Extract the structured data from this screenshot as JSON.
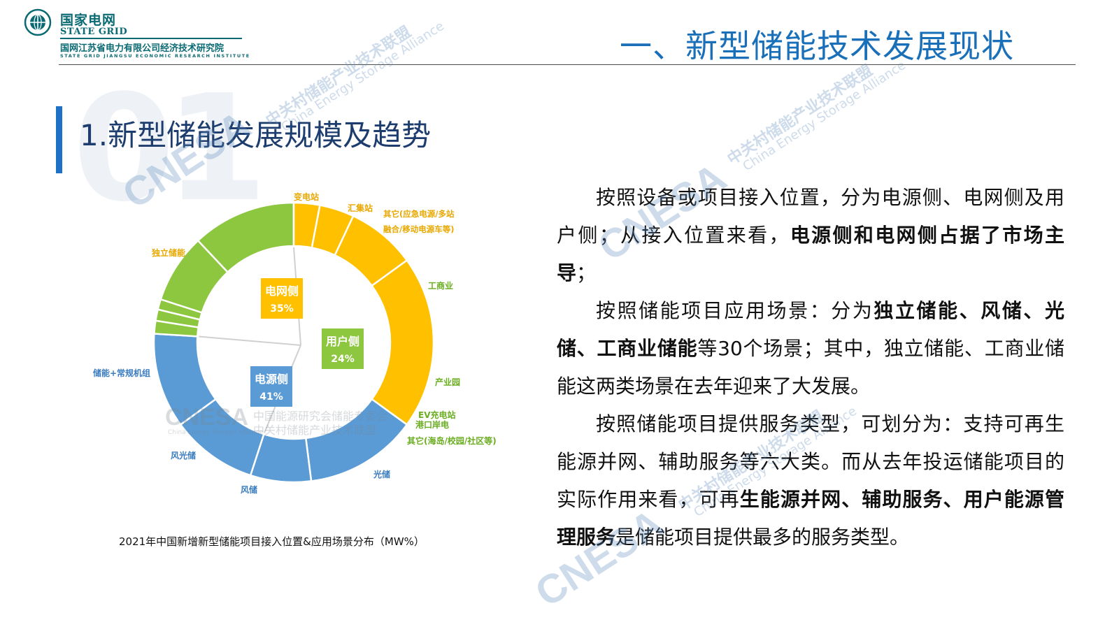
{
  "header": {
    "logo_cn": "国家电网",
    "logo_en": "STATE GRID",
    "org_cn": "国网江苏省电力有限公司经济技术研究院",
    "org_en": "STATE GRID JIANGSU ECONOMIC RESEARCH INSTITUTE",
    "title": "一、新型储能技术发展现状"
  },
  "section": {
    "number": "01",
    "title": "1.新型储能发展规模及趋势"
  },
  "watermarks": {
    "brand": "CNESA",
    "cn": "中关村储能产业技术联盟",
    "en": "China Energy Storage Alliance",
    "cn2": "中国能源研究会储能专委会"
  },
  "caption": "2021年中国新增新型储能项目接入位置&应用场景分布（MW%）",
  "chart_data": {
    "type": "pie",
    "subtype": "nested donut",
    "inner": [
      {
        "label": "电网侧",
        "value": "35%",
        "percent": 35,
        "color": "#ffc000"
      },
      {
        "label": "用户侧",
        "value": "24%",
        "percent": 24,
        "color": "#8dc63f"
      },
      {
        "label": "电源侧",
        "value": "41%",
        "percent": 41,
        "color": "#5b9bd5"
      }
    ],
    "outer": [
      {
        "label": "变电站",
        "parent": "电网侧",
        "percent": 8,
        "color": "#ffc000"
      },
      {
        "label": "汇集站",
        "parent": "电网侧",
        "percent": 4,
        "color": "#ffc000"
      },
      {
        "label": "其它(应急电源/多站融合/移动电源车等)",
        "parent": "电网侧",
        "percent": 3,
        "color": "#ffc000"
      },
      {
        "label": "工商业",
        "parent": "用户侧",
        "percent": 12,
        "color": "#8dc63f"
      },
      {
        "label": "产业园",
        "parent": "用户侧",
        "percent": 8,
        "color": "#8dc63f"
      },
      {
        "label": "EV充电站",
        "parent": "用户侧",
        "percent": 1.2,
        "color": "#8dc63f"
      },
      {
        "label": "港口岸电",
        "parent": "用户侧",
        "percent": 1.3,
        "color": "#8dc63f"
      },
      {
        "label": "其它(海岛/校园/社区等)",
        "parent": "用户侧",
        "percent": 1.5,
        "color": "#8dc63f"
      },
      {
        "label": "光储",
        "parent": "电源侧",
        "percent": 11,
        "color": "#5b9bd5"
      },
      {
        "label": "风储",
        "parent": "电源侧",
        "percent": 10,
        "color": "#5b9bd5"
      },
      {
        "label": "风光储",
        "parent": "电源侧",
        "percent": 7,
        "color": "#5b9bd5"
      },
      {
        "label": "储能+常规机组",
        "parent": "电源侧",
        "percent": 13,
        "color": "#5b9bd5"
      },
      {
        "label": "独立储能",
        "parent": "电网侧",
        "percent": 20,
        "color": "#ffc000"
      }
    ]
  },
  "body": {
    "p1": {
      "a": "按照设备或项目接入位置，分为电源侧、电网侧及用户侧；从接入位置来看，",
      "b": "电源侧和电网侧占据了市场主导",
      "c": "；"
    },
    "p2": {
      "a": "按照储能项目应用场景：分为",
      "b": "独立储能、风储、光储、工商业储能",
      "c": "等30个场景；其中，独立储能、工商业储能这两类场景在去年迎来了大发展。"
    },
    "p3": {
      "a": "按照储能项目提供服务类型，可划分为：支持可再生能源并网、辅助服务等六大类。而从去年投运储能项目的实际作用来看，可再",
      "b": "生能源并网、辅助服务、用户能源管理服务",
      "c": "是储能项目提供最多的服务类型。"
    }
  },
  "colors": {
    "brand_teal": "#0a6a73",
    "title_blue": "#1a6fb9",
    "grid_yellow": "#ffc000",
    "user_green": "#8dc63f",
    "source_blue": "#5b9bd5"
  }
}
